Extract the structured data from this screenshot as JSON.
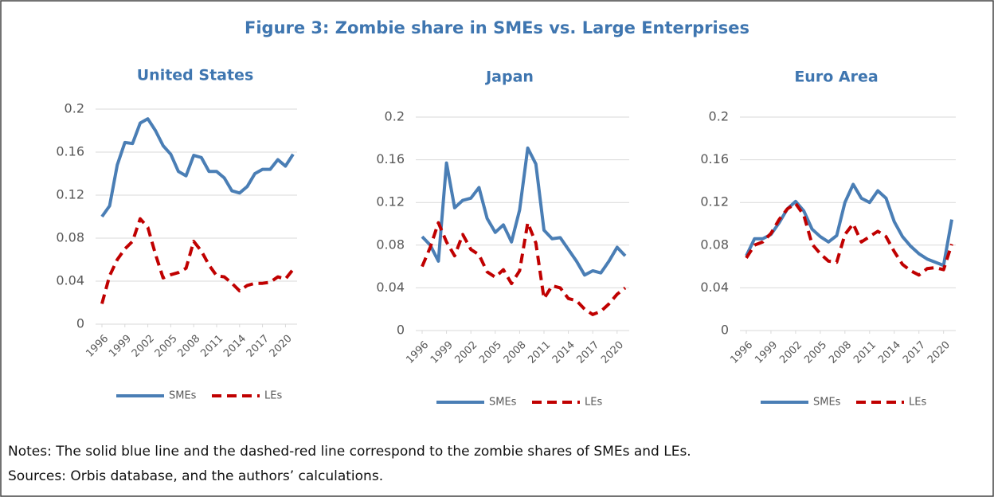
{
  "title": "Figure 3: Zombie share in SMEs vs. Large Enterprises",
  "chart_data": [
    {
      "type": "line",
      "title": "United States",
      "x": [
        1996,
        1997,
        1998,
        1999,
        2000,
        2001,
        2002,
        2003,
        2004,
        2005,
        2006,
        2007,
        2008,
        2009,
        2010,
        2011,
        2012,
        2013,
        2014,
        2015,
        2016,
        2017,
        2018,
        2019,
        2020,
        2021
      ],
      "xlim": [
        1996,
        2021
      ],
      "xticks": [
        1996,
        1999,
        2002,
        2005,
        2008,
        2011,
        2014,
        2017,
        2020
      ],
      "ylim": [
        0,
        0.2
      ],
      "yticks": [
        0,
        0.04,
        0.08,
        0.12,
        0.16,
        0.2
      ],
      "grid": true,
      "series": [
        {
          "name": "SMEs",
          "color": "#4a7eb5",
          "dashed": false,
          "values": [
            0.1,
            0.11,
            0.148,
            0.169,
            0.168,
            0.187,
            0.191,
            0.18,
            0.166,
            0.158,
            0.142,
            0.138,
            0.157,
            0.155,
            0.142,
            0.142,
            0.136,
            0.124,
            0.122,
            0.128,
            0.14,
            0.144,
            0.144,
            0.153,
            0.147,
            0.158
          ]
        },
        {
          "name": "LEs",
          "color": "#c00000",
          "dashed": true,
          "values": [
            0.019,
            0.045,
            0.06,
            0.07,
            0.077,
            0.098,
            0.09,
            0.065,
            0.043,
            0.046,
            0.048,
            0.052,
            0.077,
            0.068,
            0.055,
            0.045,
            0.044,
            0.038,
            0.031,
            0.036,
            0.038,
            0.038,
            0.039,
            0.044,
            0.042,
            0.051
          ]
        }
      ]
    },
    {
      "type": "line",
      "title": "Japan",
      "x": [
        1996,
        1997,
        1998,
        1999,
        2000,
        2001,
        2002,
        2003,
        2004,
        2005,
        2006,
        2007,
        2008,
        2009,
        2010,
        2011,
        2012,
        2013,
        2014,
        2015,
        2016,
        2017,
        2018,
        2019,
        2020,
        2021
      ],
      "xlim": [
        1996,
        2021
      ],
      "xticks": [
        1996,
        1999,
        2002,
        2005,
        2008,
        2011,
        2014,
        2017,
        2020
      ],
      "ylim": [
        0,
        0.2
      ],
      "yticks": [
        0,
        0.04,
        0.08,
        0.12,
        0.16,
        0.2
      ],
      "grid": true,
      "series": [
        {
          "name": "SMEs",
          "color": "#4a7eb5",
          "dashed": false,
          "values": [
            0.088,
            0.08,
            0.065,
            0.157,
            0.115,
            0.122,
            0.124,
            0.134,
            0.105,
            0.092,
            0.099,
            0.083,
            0.113,
            0.171,
            0.156,
            0.094,
            0.086,
            0.087,
            0.076,
            0.065,
            0.052,
            0.056,
            0.054,
            0.065,
            0.078,
            0.07
          ]
        },
        {
          "name": "LEs",
          "color": "#c00000",
          "dashed": true,
          "values": [
            0.06,
            0.078,
            0.101,
            0.083,
            0.07,
            0.09,
            0.076,
            0.071,
            0.055,
            0.05,
            0.057,
            0.044,
            0.056,
            0.101,
            0.082,
            0.03,
            0.042,
            0.04,
            0.03,
            0.028,
            0.02,
            0.015,
            0.018,
            0.025,
            0.034,
            0.04
          ]
        }
      ]
    },
    {
      "type": "line",
      "title": "Euro Area",
      "x": [
        1996,
        1997,
        1998,
        1999,
        2000,
        2001,
        2002,
        2003,
        2004,
        2005,
        2006,
        2007,
        2008,
        2009,
        2010,
        2011,
        2012,
        2013,
        2014,
        2015,
        2016,
        2017,
        2018,
        2019,
        2020,
        2021
      ],
      "xlim": [
        1996,
        2021
      ],
      "xticks": [
        1996,
        1999,
        2002,
        2005,
        2008,
        2011,
        2014,
        2017,
        2020
      ],
      "ylim": [
        0,
        0.2
      ],
      "yticks": [
        0,
        0.04,
        0.08,
        0.12,
        0.16,
        0.2
      ],
      "grid": true,
      "series": [
        {
          "name": "SMEs",
          "color": "#4a7eb5",
          "dashed": false,
          "values": [
            0.07,
            0.086,
            0.086,
            0.09,
            0.101,
            0.114,
            0.121,
            0.112,
            0.095,
            0.088,
            0.083,
            0.089,
            0.12,
            0.137,
            0.124,
            0.12,
            0.131,
            0.124,
            0.102,
            0.088,
            0.079,
            0.072,
            0.067,
            0.064,
            0.061,
            0.104
          ]
        },
        {
          "name": "LEs",
          "color": "#c00000",
          "dashed": true,
          "values": [
            0.068,
            0.08,
            0.083,
            0.091,
            0.104,
            0.114,
            0.119,
            0.108,
            0.081,
            0.072,
            0.065,
            0.064,
            0.09,
            0.1,
            0.083,
            0.088,
            0.093,
            0.088,
            0.074,
            0.062,
            0.056,
            0.052,
            0.058,
            0.059,
            0.057,
            0.081
          ]
        }
      ]
    }
  ],
  "notes": [
    "Notes: The solid blue line and the dashed-red line correspond to the zombie shares of SMEs and LEs.",
    "Sources: Orbis database, and the authors’ calculations."
  ]
}
